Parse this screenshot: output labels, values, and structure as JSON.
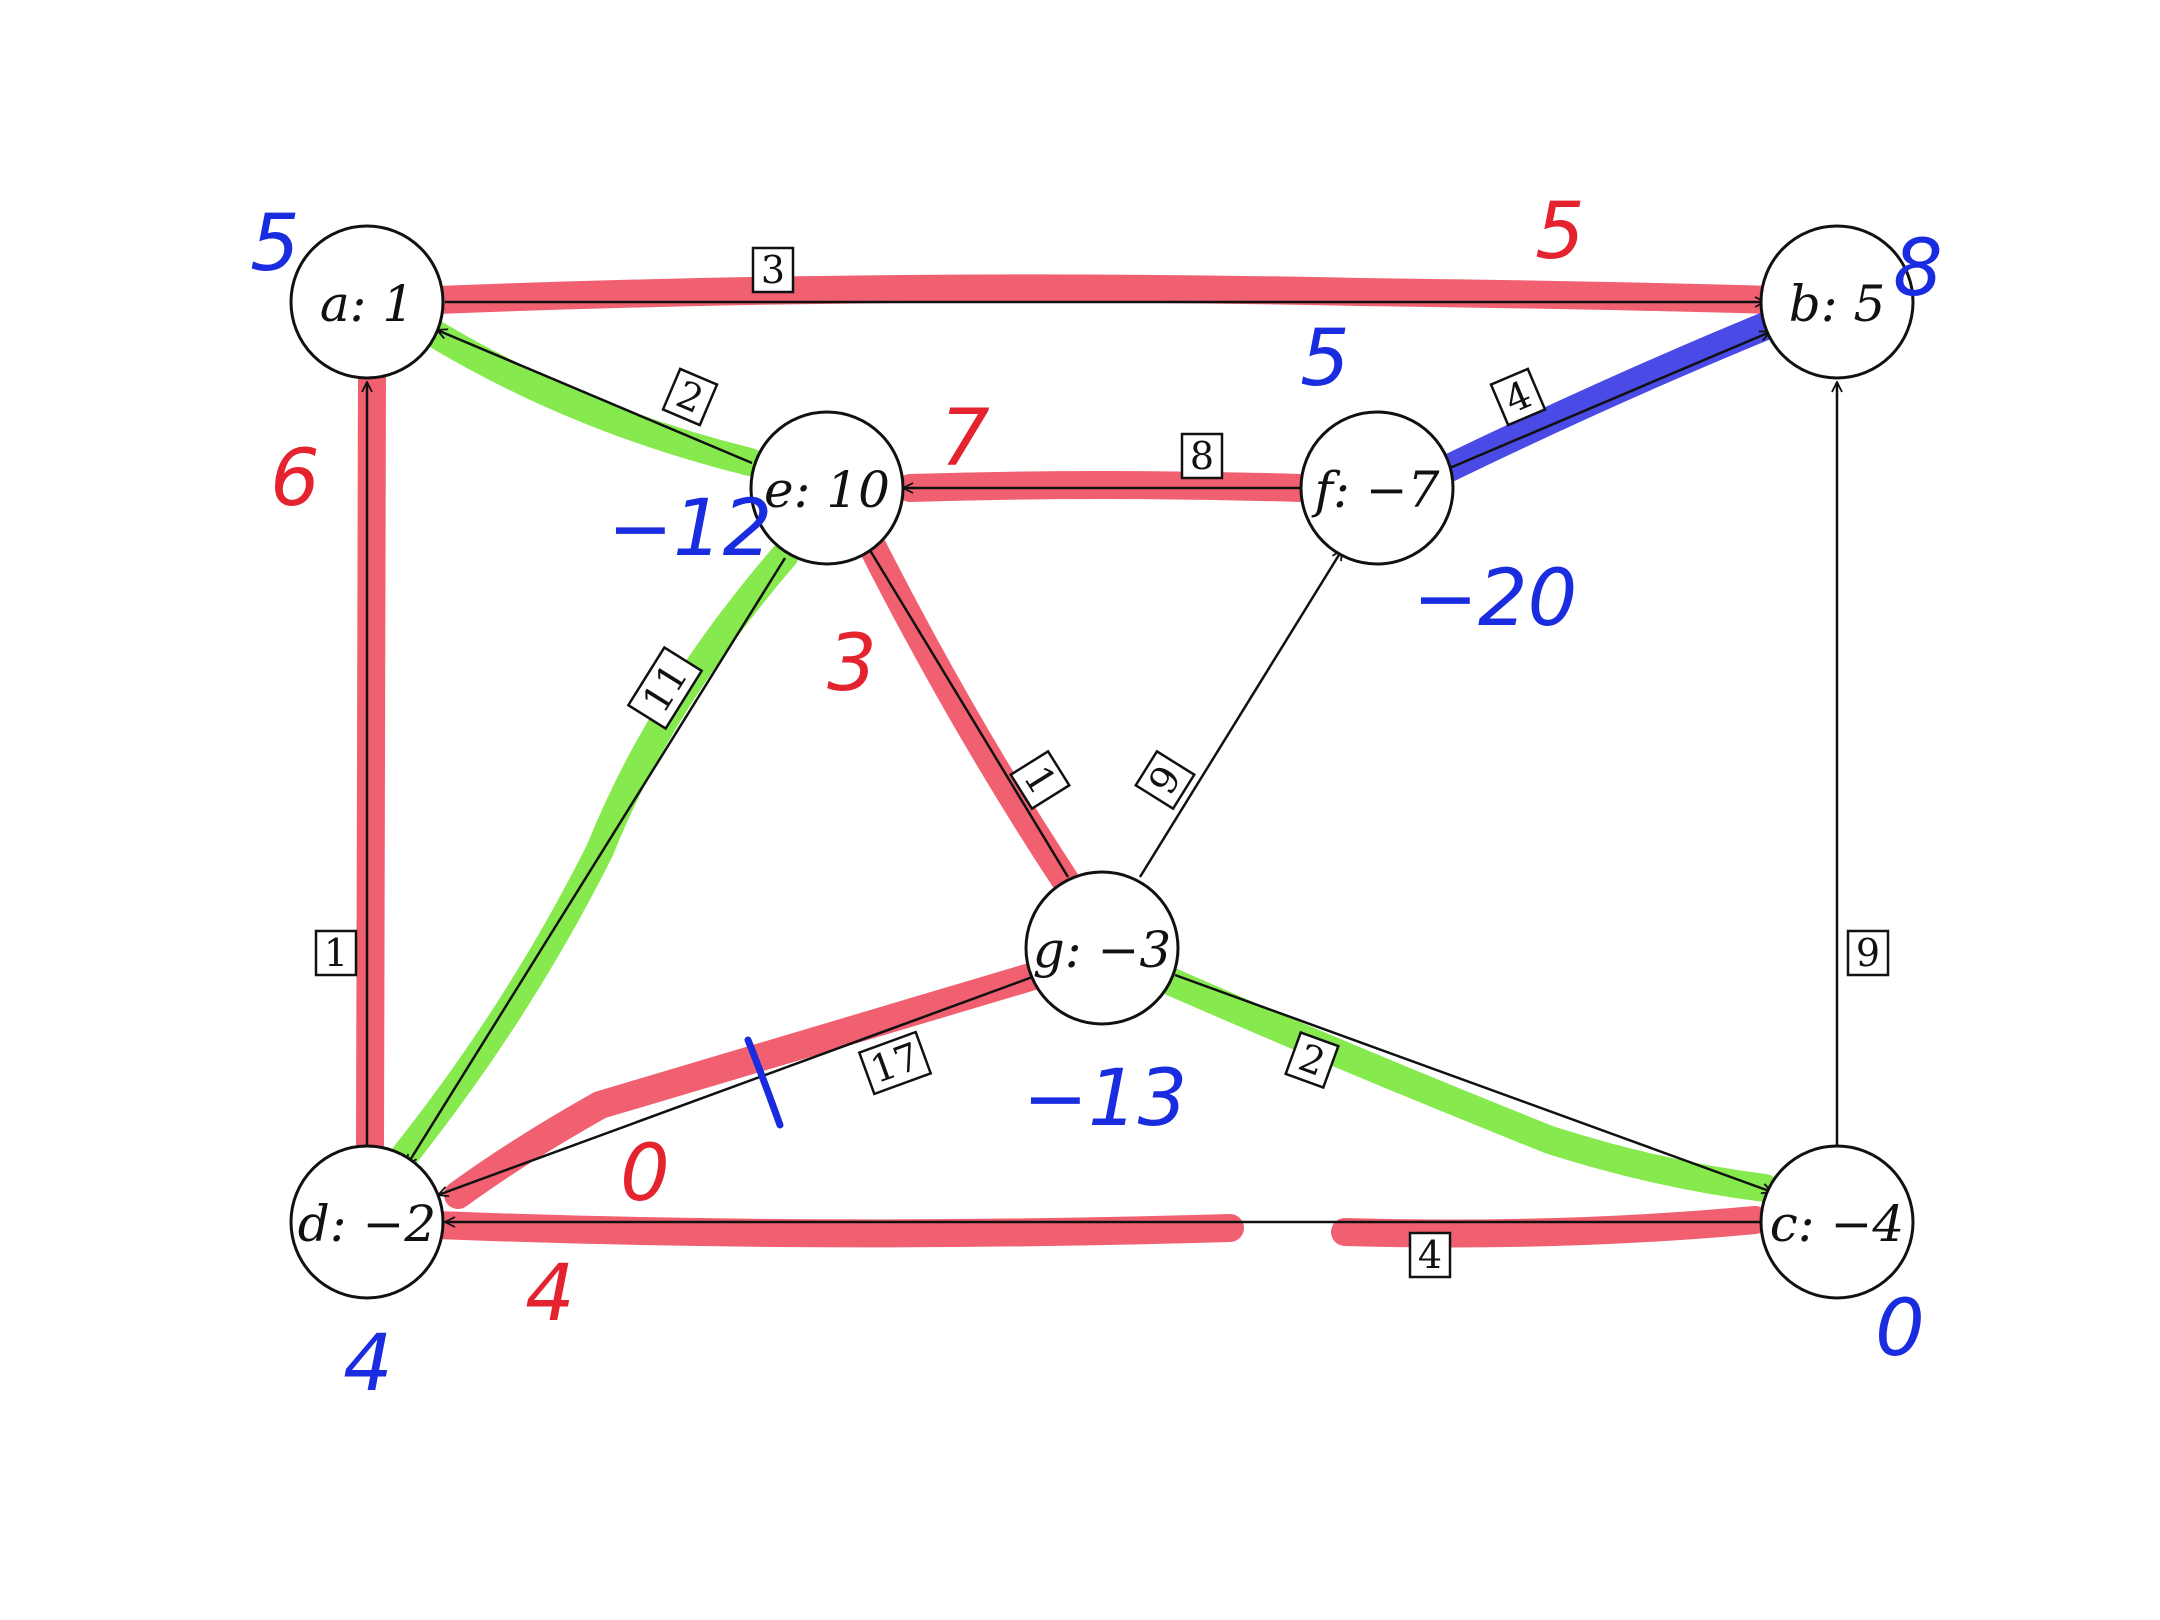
{
  "colors": {
    "red_highlight": "#f06070",
    "green_highlight": "#86ea4f",
    "blue_highlight": "#4a4ae6",
    "red_ink": "#e4232f",
    "blue_ink": "#1a2ce0"
  },
  "nodes": [
    {
      "id": "a",
      "label": "a: 1"
    },
    {
      "id": "b",
      "label": "b: 5"
    },
    {
      "id": "c",
      "label": "c: −4"
    },
    {
      "id": "d",
      "label": "d: −2"
    },
    {
      "id": "e",
      "label": "e: 10"
    },
    {
      "id": "f",
      "label": "f: −7"
    },
    {
      "id": "g",
      "label": "g: −3"
    }
  ],
  "edges": [
    {
      "id": "a-b",
      "from": "a",
      "to": "b",
      "weight": "3"
    },
    {
      "id": "e-a",
      "from": "e",
      "to": "a",
      "weight": "2"
    },
    {
      "id": "f-e",
      "from": "f",
      "to": "e",
      "weight": "8"
    },
    {
      "id": "f-b",
      "from": "f",
      "to": "b",
      "weight": "4"
    },
    {
      "id": "e-d",
      "from": "e",
      "to": "d",
      "weight": "11"
    },
    {
      "id": "g-e",
      "from": "g",
      "to": "e",
      "weight": "1"
    },
    {
      "id": "g-f",
      "from": "g",
      "to": "f",
      "weight": "9"
    },
    {
      "id": "d-a",
      "from": "d",
      "to": "a",
      "weight": "1"
    },
    {
      "id": "g-d",
      "from": "g",
      "to": "d",
      "weight": "17"
    },
    {
      "id": "g-c",
      "from": "g",
      "to": "c",
      "weight": "2"
    },
    {
      "id": "c-b",
      "from": "c",
      "to": "b",
      "weight": "9"
    },
    {
      "id": "c-d",
      "from": "c",
      "to": "d",
      "weight": "4"
    }
  ],
  "annotations": {
    "red": [
      "5",
      "6",
      "7",
      "3",
      "0",
      "4"
    ],
    "blue": [
      "5",
      "8",
      "5",
      "−12",
      "−20",
      "−13",
      "4",
      "0"
    ]
  }
}
